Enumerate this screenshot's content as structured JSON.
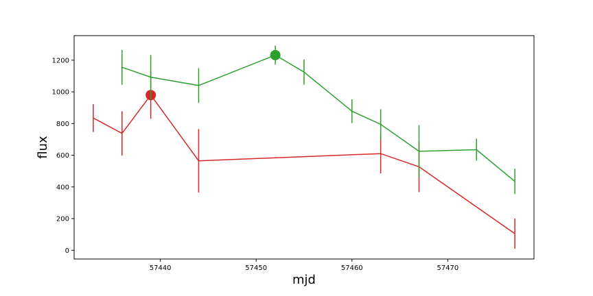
{
  "chart_data": {
    "type": "line",
    "xlabel": "mjd",
    "ylabel": "flux",
    "xlim": [
      57431,
      57479
    ],
    "ylim": [
      -55,
      1355
    ],
    "x_ticks": [
      57440,
      57450,
      57460,
      57470
    ],
    "y_ticks": [
      0,
      200,
      400,
      600,
      800,
      1000,
      1200
    ],
    "grid": false,
    "series": [
      {
        "color": "#d62728",
        "x": [
          57433,
          57436,
          57439,
          57444,
          57463,
          57467,
          57477
        ],
        "y": [
          835,
          738,
          980,
          565,
          610,
          527,
          105
        ],
        "yerr": [
          88,
          140,
          150,
          200,
          125,
          160,
          95
        ],
        "peak": {
          "x": 57439,
          "y": 980
        }
      },
      {
        "color": "#2ca02c",
        "x": [
          57436,
          57439,
          57444,
          57452,
          57455,
          57460,
          57463,
          57467,
          57473,
          57477
        ],
        "y": [
          1155,
          1093,
          1040,
          1232,
          1125,
          878,
          795,
          625,
          635,
          435
        ],
        "yerr": [
          110,
          140,
          110,
          60,
          80,
          75,
          95,
          165,
          70,
          80
        ],
        "peak": {
          "x": 57452,
          "y": 1232
        }
      }
    ]
  }
}
